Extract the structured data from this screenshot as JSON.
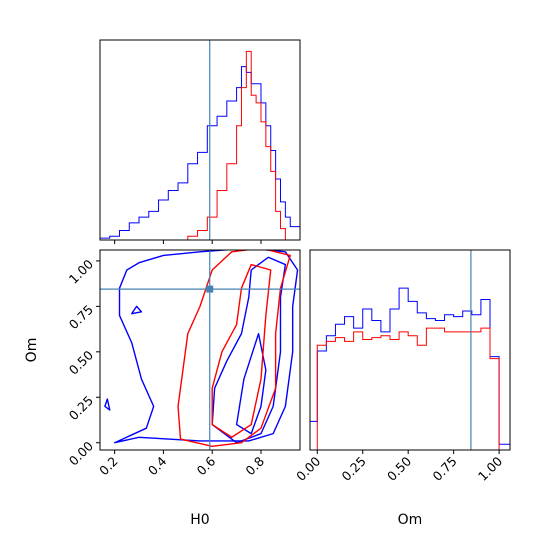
{
  "chart_data": {
    "type": "corner",
    "parameters": [
      "H0",
      "Om"
    ],
    "truths": {
      "H0": 0.59,
      "Om": 0.845
    },
    "truth_color": "#4682b4",
    "series": [
      {
        "color": "#0000ff"
      },
      {
        "color": "#ff0000"
      }
    ],
    "axes": {
      "H0": {
        "label": "H0",
        "range": [
          0.14,
          0.96
        ],
        "ticks": [
          "0.2",
          "0.4",
          "0.6",
          "0.8"
        ],
        "tick_values": [
          0.2,
          0.4,
          0.6,
          0.8
        ]
      },
      "Om": {
        "label": "Om",
        "range": [
          -0.04,
          1.06
        ],
        "ticks": [
          "0.00",
          "0.25",
          "0.50",
          "0.75",
          "1.00"
        ],
        "tick_values": [
          0.0,
          0.25,
          0.5,
          0.75,
          1.0
        ]
      }
    },
    "hist_H0": {
      "bin_edges": [
        0.14,
        0.18,
        0.22,
        0.26,
        0.3,
        0.34,
        0.38,
        0.42,
        0.46,
        0.5,
        0.54,
        0.58,
        0.62,
        0.66,
        0.7,
        0.72,
        0.74,
        0.76,
        0.78,
        0.8,
        0.82,
        0.84,
        0.86,
        0.88,
        0.9,
        0.92,
        0.96
      ],
      "blue": [
        0.01,
        0.02,
        0.05,
        0.09,
        0.12,
        0.15,
        0.21,
        0.26,
        0.3,
        0.4,
        0.46,
        0.6,
        0.65,
        0.73,
        0.8,
        0.91,
        0.88,
        0.82,
        0.82,
        0.72,
        0.6,
        0.47,
        0.32,
        0.2,
        0.12,
        0.07
      ],
      "red": [
        0,
        0,
        0,
        0,
        0,
        0,
        0,
        0,
        0,
        0.02,
        0.05,
        0.12,
        0.26,
        0.4,
        0.6,
        0.8,
        0.99,
        0.76,
        0.72,
        0.62,
        0.49,
        0.36,
        0.15,
        0.06,
        0,
        0
      ],
      "ymax": 1.05
    },
    "hist_Om": {
      "bin_edges": [
        -0.04,
        0.0,
        0.05,
        0.1,
        0.15,
        0.2,
        0.25,
        0.3,
        0.35,
        0.4,
        0.45,
        0.5,
        0.55,
        0.6,
        0.65,
        0.7,
        0.75,
        0.8,
        0.85,
        0.9,
        0.95,
        1.0,
        1.06
      ],
      "blue": [
        0.15,
        0.52,
        0.6,
        0.66,
        0.7,
        0.64,
        0.74,
        0.68,
        0.62,
        0.74,
        0.85,
        0.78,
        0.72,
        0.69,
        0.68,
        0.71,
        0.7,
        0.73,
        0.71,
        0.79,
        0.49,
        0.03
      ],
      "red": [
        0,
        0.55,
        0.57,
        0.59,
        0.57,
        0.62,
        0.58,
        0.59,
        0.6,
        0.58,
        0.62,
        0.6,
        0.55,
        0.64,
        0.64,
        0.62,
        0.62,
        0.62,
        0.62,
        0.64,
        0.48,
        0
      ],
      "ymax": 1.05
    },
    "contours_2d": {
      "blue": [
        [
          [
            0.2,
            0.0
          ],
          [
            0.3,
            0.03
          ],
          [
            0.55,
            0.01
          ],
          [
            0.75,
            0.01
          ],
          [
            0.85,
            0.05
          ],
          [
            0.9,
            0.2
          ],
          [
            0.93,
            0.5
          ],
          [
            0.93,
            0.75
          ],
          [
            0.95,
            0.95
          ],
          [
            0.9,
            1.05
          ],
          [
            0.75,
            1.07
          ],
          [
            0.55,
            1.05
          ],
          [
            0.4,
            1.03
          ],
          [
            0.3,
            0.99
          ],
          [
            0.25,
            0.95
          ],
          [
            0.22,
            0.85
          ],
          [
            0.22,
            0.7
          ],
          [
            0.27,
            0.55
          ],
          [
            0.31,
            0.35
          ],
          [
            0.36,
            0.2
          ],
          [
            0.33,
            0.08
          ],
          [
            0.2,
            0.0
          ]
        ],
        [
          [
            0.6,
            0.1
          ],
          [
            0.7,
            0.0
          ],
          [
            0.8,
            0.05
          ],
          [
            0.85,
            0.2
          ],
          [
            0.88,
            0.5
          ],
          [
            0.88,
            0.8
          ],
          [
            0.9,
            0.98
          ],
          [
            0.83,
            1.02
          ],
          [
            0.76,
            0.95
          ],
          [
            0.75,
            0.8
          ],
          [
            0.72,
            0.6
          ],
          [
            0.66,
            0.45
          ],
          [
            0.61,
            0.3
          ],
          [
            0.6,
            0.1
          ]
        ],
        [
          [
            0.7,
            0.1
          ],
          [
            0.76,
            0.05
          ],
          [
            0.8,
            0.2
          ],
          [
            0.82,
            0.4
          ],
          [
            0.79,
            0.6
          ],
          [
            0.73,
            0.35
          ],
          [
            0.7,
            0.1
          ]
        ],
        [
          [
            0.27,
            0.71
          ],
          [
            0.31,
            0.72
          ],
          [
            0.29,
            0.75
          ],
          [
            0.27,
            0.71
          ]
        ],
        [
          [
            0.16,
            0.2
          ],
          [
            0.18,
            0.18
          ],
          [
            0.17,
            0.24
          ],
          [
            0.16,
            0.2
          ]
        ]
      ],
      "red": [
        [
          [
            0.47,
            0.02
          ],
          [
            0.6,
            -0.02
          ],
          [
            0.72,
            0.0
          ],
          [
            0.8,
            0.08
          ],
          [
            0.86,
            0.3
          ],
          [
            0.86,
            0.6
          ],
          [
            0.88,
            0.85
          ],
          [
            0.92,
            1.03
          ],
          [
            0.8,
            1.07
          ],
          [
            0.68,
            1.05
          ],
          [
            0.6,
            0.95
          ],
          [
            0.55,
            0.75
          ],
          [
            0.5,
            0.6
          ],
          [
            0.48,
            0.4
          ],
          [
            0.46,
            0.2
          ],
          [
            0.47,
            0.02
          ]
        ],
        [
          [
            0.6,
            0.1
          ],
          [
            0.68,
            0.03
          ],
          [
            0.76,
            0.1
          ],
          [
            0.8,
            0.35
          ],
          [
            0.82,
            0.7
          ],
          [
            0.84,
            0.95
          ],
          [
            0.76,
            0.98
          ],
          [
            0.72,
            0.85
          ],
          [
            0.7,
            0.65
          ],
          [
            0.64,
            0.5
          ],
          [
            0.6,
            0.3
          ],
          [
            0.6,
            0.1
          ]
        ]
      ]
    }
  }
}
